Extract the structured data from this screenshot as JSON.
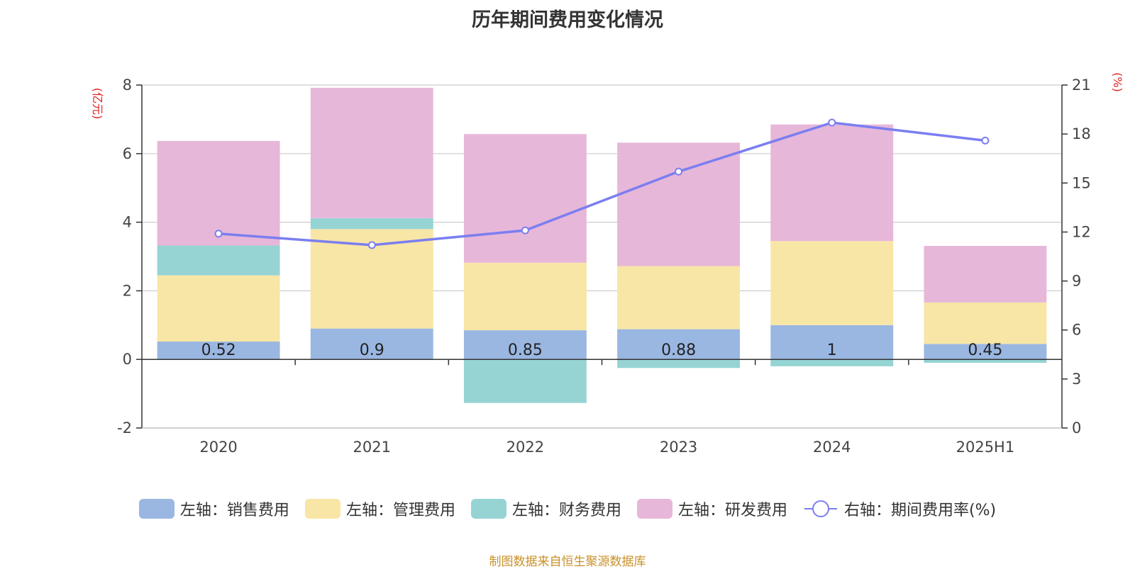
{
  "title": "历年期间费用变化情况",
  "source_note": "制图数据来自恒生聚源数据库",
  "colors": {
    "sales": "#9ab7e2",
    "admin": "#f8e6a6",
    "finance": "#96d4d4",
    "rd": "#e7b7d9",
    "rate_line": "#7b7ef0",
    "unit": "#e02020"
  },
  "chart_data": {
    "type": "bar",
    "title": "历年期间费用变化情况",
    "categories": [
      "2020",
      "2021",
      "2022",
      "2023",
      "2024",
      "2025H1"
    ],
    "left_axis": {
      "unit": "(亿元)",
      "ylim": [
        -2,
        8
      ],
      "ticks": [
        "8",
        "6",
        "4",
        "2",
        "0",
        "-2"
      ],
      "tick_values": [
        8,
        6,
        4,
        2,
        0,
        -2
      ]
    },
    "right_axis": {
      "unit": "(%)",
      "ylim": [
        0,
        21
      ],
      "ticks": [
        "21",
        "18",
        "15",
        "12",
        "9",
        "6",
        "3",
        "0"
      ],
      "tick_values": [
        21,
        18,
        15,
        12,
        9,
        6,
        3,
        0
      ]
    },
    "series": [
      {
        "name": "左轴：销售费用",
        "key": "sales",
        "values": [
          0.52,
          0.9,
          0.85,
          0.88,
          1.0,
          0.45
        ],
        "labels": [
          "0.52",
          "0.9",
          "0.85",
          "0.88",
          "1",
          "0.45"
        ]
      },
      {
        "name": "左轴：管理费用",
        "key": "admin",
        "values": [
          1.93,
          2.9,
          1.97,
          1.84,
          2.45,
          1.21
        ]
      },
      {
        "name": "左轴：财务费用",
        "key": "finance",
        "values": [
          0.87,
          0.32,
          -1.27,
          -0.25,
          -0.2,
          -0.1
        ]
      },
      {
        "name": "左轴：研发费用",
        "key": "rd",
        "values": [
          3.05,
          3.8,
          3.75,
          3.6,
          3.4,
          1.65
        ]
      }
    ],
    "line_series": {
      "name": "右轴：期间费用率(%)",
      "key": "rate_line",
      "values": [
        11.9,
        11.2,
        12.1,
        15.7,
        18.7,
        17.6
      ]
    },
    "grid": true,
    "legend": "bottom"
  }
}
